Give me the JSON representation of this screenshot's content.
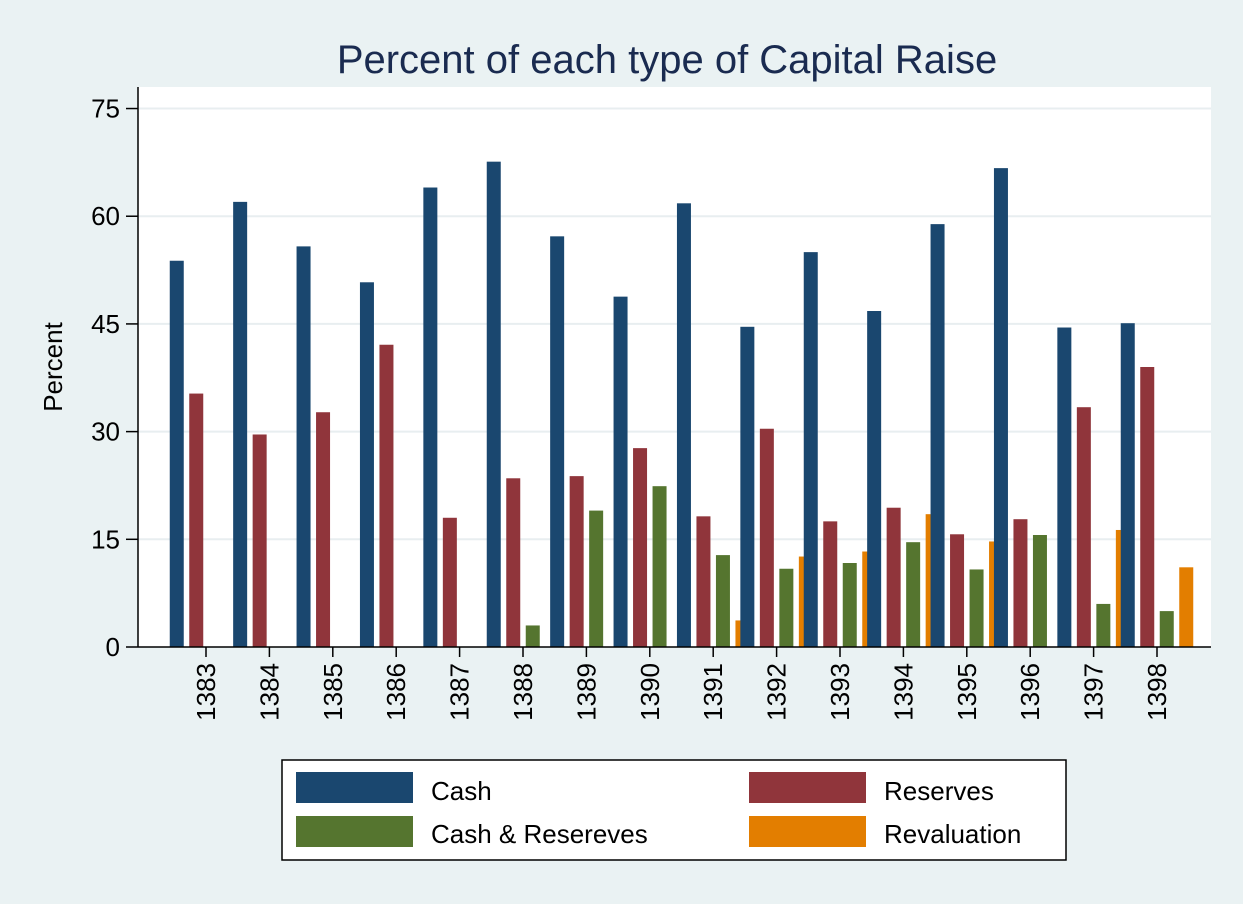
{
  "chart_data": {
    "type": "bar",
    "title": "Percent of each type of Capital Raise",
    "xlabel": "",
    "ylabel": "Percent",
    "ylim": [
      0,
      78
    ],
    "yticks": [
      0,
      15,
      30,
      45,
      60,
      75
    ],
    "grid": true,
    "legend_position": "bottom",
    "categories": [
      "1383",
      "1384",
      "1385",
      "1386",
      "1387",
      "1388",
      "1389",
      "1390",
      "1391",
      "1392",
      "1393",
      "1394",
      "1395",
      "1396",
      "1397",
      "1398"
    ],
    "series": [
      {
        "name": "Cash",
        "color": "#1a476f",
        "values": [
          53.8,
          62.0,
          55.8,
          50.8,
          64.0,
          67.6,
          57.2,
          48.8,
          61.8,
          44.6,
          55.0,
          46.8,
          58.9,
          66.7,
          44.5,
          45.1
        ]
      },
      {
        "name": "Reserves",
        "color": "#90353b",
        "values": [
          35.3,
          29.6,
          32.7,
          42.1,
          18.0,
          23.5,
          23.8,
          27.7,
          18.2,
          30.4,
          17.5,
          19.4,
          15.7,
          17.8,
          33.4,
          39.0
        ]
      },
      {
        "name": "Cash & Resereves",
        "color": "#55752f",
        "values": [
          0,
          0,
          0,
          0,
          0,
          3.0,
          19.0,
          22.4,
          12.8,
          10.9,
          11.7,
          14.6,
          10.8,
          15.6,
          6.0,
          5.0
        ]
      },
      {
        "name": "Revaluation",
        "color": "#e37e00",
        "values": [
          0,
          0,
          0,
          0,
          0,
          0,
          0,
          0,
          3.7,
          12.6,
          13.3,
          18.5,
          14.7,
          0,
          16.3,
          11.1
        ]
      }
    ]
  }
}
